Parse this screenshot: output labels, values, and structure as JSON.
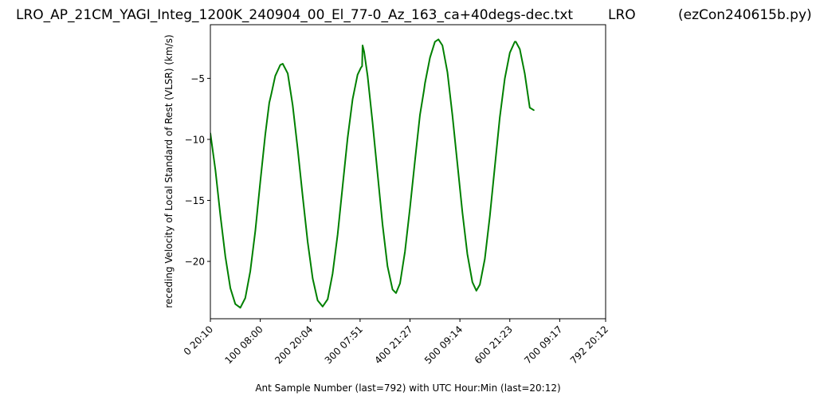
{
  "header": {
    "file_title": "LRO_AP_21CM_YAGI_Integ_1200K_240904_00_El_77-0_Az_163_ca+40degs-dec.txt",
    "station": "LRO",
    "program": "(ezCon240615b.py)"
  },
  "chart_data": {
    "type": "line",
    "xlabel": "Ant Sample Number (last=792) with UTC Hour:Min (last=20:12)",
    "ylabel": "receding Velocity of Local Standard of Rest (VLSR) (km/s)",
    "xlim": [
      0,
      792
    ],
    "ylim": [
      -24.7,
      -0.6
    ],
    "x_ticks": [
      {
        "value": 0,
        "label": "0  20:10"
      },
      {
        "value": 100,
        "label": "100  08:00"
      },
      {
        "value": 200,
        "label": "200  20:04"
      },
      {
        "value": 300,
        "label": "300  07:51"
      },
      {
        "value": 400,
        "label": "400  21:27"
      },
      {
        "value": 500,
        "label": "500  09:14"
      },
      {
        "value": 600,
        "label": "600  21:23"
      },
      {
        "value": 700,
        "label": "700  09:17"
      },
      {
        "value": 792,
        "label": "792  20:12"
      }
    ],
    "y_ticks": [
      {
        "value": -5,
        "label": "−5"
      },
      {
        "value": -10,
        "label": "−10"
      },
      {
        "value": -15,
        "label": "−15"
      },
      {
        "value": -20,
        "label": "−20"
      }
    ],
    "grid": false,
    "series": [
      {
        "color": "#008000",
        "points": [
          [
            0,
            -9.5
          ],
          [
            10,
            -12.5
          ],
          [
            20,
            -16.2
          ],
          [
            30,
            -19.6
          ],
          [
            40,
            -22.2
          ],
          [
            50,
            -23.5
          ],
          [
            60,
            -23.8
          ],
          [
            70,
            -23.0
          ],
          [
            80,
            -20.8
          ],
          [
            90,
            -17.5
          ],
          [
            100,
            -13.5
          ],
          [
            110,
            -9.6
          ],
          [
            118,
            -7.0
          ],
          [
            122,
            -6.3
          ],
          [
            130,
            -4.8
          ],
          [
            140,
            -3.9
          ],
          [
            145,
            -3.8
          ],
          [
            155,
            -4.6
          ],
          [
            165,
            -7.2
          ],
          [
            175,
            -10.8
          ],
          [
            185,
            -14.7
          ],
          [
            195,
            -18.4
          ],
          [
            205,
            -21.4
          ],
          [
            215,
            -23.2
          ],
          [
            225,
            -23.7
          ],
          [
            235,
            -23.1
          ],
          [
            245,
            -21.0
          ],
          [
            255,
            -17.8
          ],
          [
            265,
            -13.8
          ],
          [
            275,
            -9.9
          ],
          [
            285,
            -6.7
          ],
          [
            295,
            -4.7
          ],
          [
            302,
            -4.1
          ],
          [
            304,
            -4.0
          ],
          [
            305,
            -2.3
          ],
          [
            308,
            -2.8
          ],
          [
            315,
            -4.8
          ],
          [
            325,
            -8.6
          ],
          [
            335,
            -12.8
          ],
          [
            345,
            -17.0
          ],
          [
            355,
            -20.4
          ],
          [
            365,
            -22.3
          ],
          [
            372,
            -22.6
          ],
          [
            380,
            -21.8
          ],
          [
            390,
            -19.2
          ],
          [
            400,
            -15.6
          ],
          [
            410,
            -11.7
          ],
          [
            420,
            -8.0
          ],
          [
            428,
            -6.0
          ],
          [
            430,
            -5.4
          ],
          [
            440,
            -3.3
          ],
          [
            450,
            -2.0
          ],
          [
            457,
            -1.8
          ],
          [
            465,
            -2.3
          ],
          [
            475,
            -4.5
          ],
          [
            485,
            -8.0
          ],
          [
            495,
            -12.0
          ],
          [
            505,
            -16.0
          ],
          [
            515,
            -19.4
          ],
          [
            525,
            -21.7
          ],
          [
            533,
            -22.4
          ],
          [
            540,
            -21.9
          ],
          [
            550,
            -19.8
          ],
          [
            560,
            -16.3
          ],
          [
            570,
            -12.2
          ],
          [
            580,
            -8.2
          ],
          [
            590,
            -5.0
          ],
          [
            600,
            -2.9
          ],
          [
            610,
            -2.0
          ],
          [
            612,
            -2.0
          ],
          [
            620,
            -2.6
          ],
          [
            630,
            -4.6
          ],
          [
            640,
            -7.4
          ],
          [
            648,
            -7.6
          ]
        ]
      }
    ]
  }
}
